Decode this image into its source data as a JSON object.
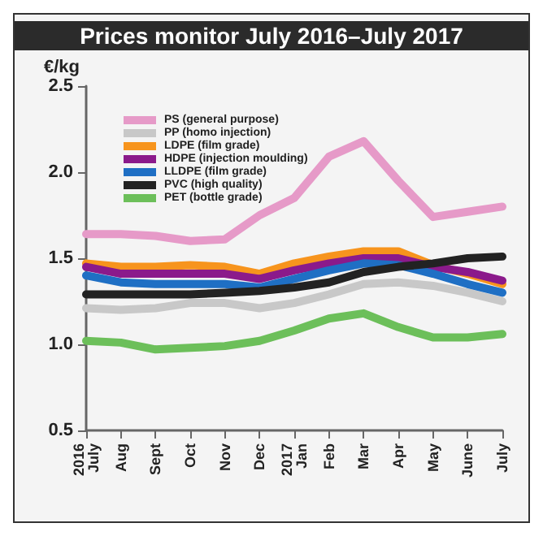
{
  "chart_data": {
    "type": "line",
    "title": "Prices monitor July 2016–July 2017",
    "ylabel": "€/kg",
    "categories": [
      "2016\nJuly",
      "Aug",
      "Sept",
      "Oct",
      "Nov",
      "Dec",
      "2017\nJan",
      "Feb",
      "Mar",
      "Apr",
      "May",
      "June",
      "July"
    ],
    "series": [
      {
        "name": "PS (general purpose)",
        "color": "#e69ac8",
        "values": [
          1.64,
          1.64,
          1.63,
          1.6,
          1.61,
          1.75,
          1.85,
          2.09,
          2.18,
          1.95,
          1.74,
          1.77,
          1.8
        ]
      },
      {
        "name": "PP (homo injection)",
        "color": "#c8c8c8",
        "values": [
          1.21,
          1.2,
          1.21,
          1.24,
          1.24,
          1.21,
          1.24,
          1.29,
          1.35,
          1.36,
          1.34,
          1.3,
          1.25
        ]
      },
      {
        "name": "LDPE (film grade)",
        "color": "#f7941d",
        "values": [
          1.47,
          1.45,
          1.45,
          1.46,
          1.45,
          1.41,
          1.47,
          1.51,
          1.54,
          1.54,
          1.46,
          1.41,
          1.35
        ]
      },
      {
        "name": "HDPE (injection moulding)",
        "color": "#8b1a8b",
        "values": [
          1.45,
          1.41,
          1.41,
          1.41,
          1.41,
          1.38,
          1.43,
          1.47,
          1.5,
          1.5,
          1.45,
          1.42,
          1.37
        ]
      },
      {
        "name": "LLDPE (film grade)",
        "color": "#1f6fc4",
        "values": [
          1.4,
          1.36,
          1.35,
          1.35,
          1.35,
          1.33,
          1.38,
          1.43,
          1.47,
          1.46,
          1.41,
          1.35,
          1.3
        ]
      },
      {
        "name": "PVC (high quality)",
        "color": "#222222",
        "values": [
          1.29,
          1.29,
          1.29,
          1.29,
          1.3,
          1.31,
          1.33,
          1.36,
          1.42,
          1.45,
          1.47,
          1.5,
          1.51
        ]
      },
      {
        "name": "PET (bottle grade)",
        "color": "#6cbf5a",
        "values": [
          1.02,
          1.01,
          0.97,
          0.98,
          0.99,
          1.02,
          1.08,
          1.15,
          1.18,
          1.1,
          1.04,
          1.04,
          1.06
        ]
      }
    ],
    "ylim": [
      0.5,
      2.5
    ],
    "yticks": [
      0.5,
      {
        "value": 1,
        "label": "1.0"
      },
      1.5,
      {
        "value": 2,
        "label": "2.0"
      },
      2.5
    ],
    "grid": false,
    "legend": "top left",
    "marker": "none",
    "line_style": "solid"
  }
}
